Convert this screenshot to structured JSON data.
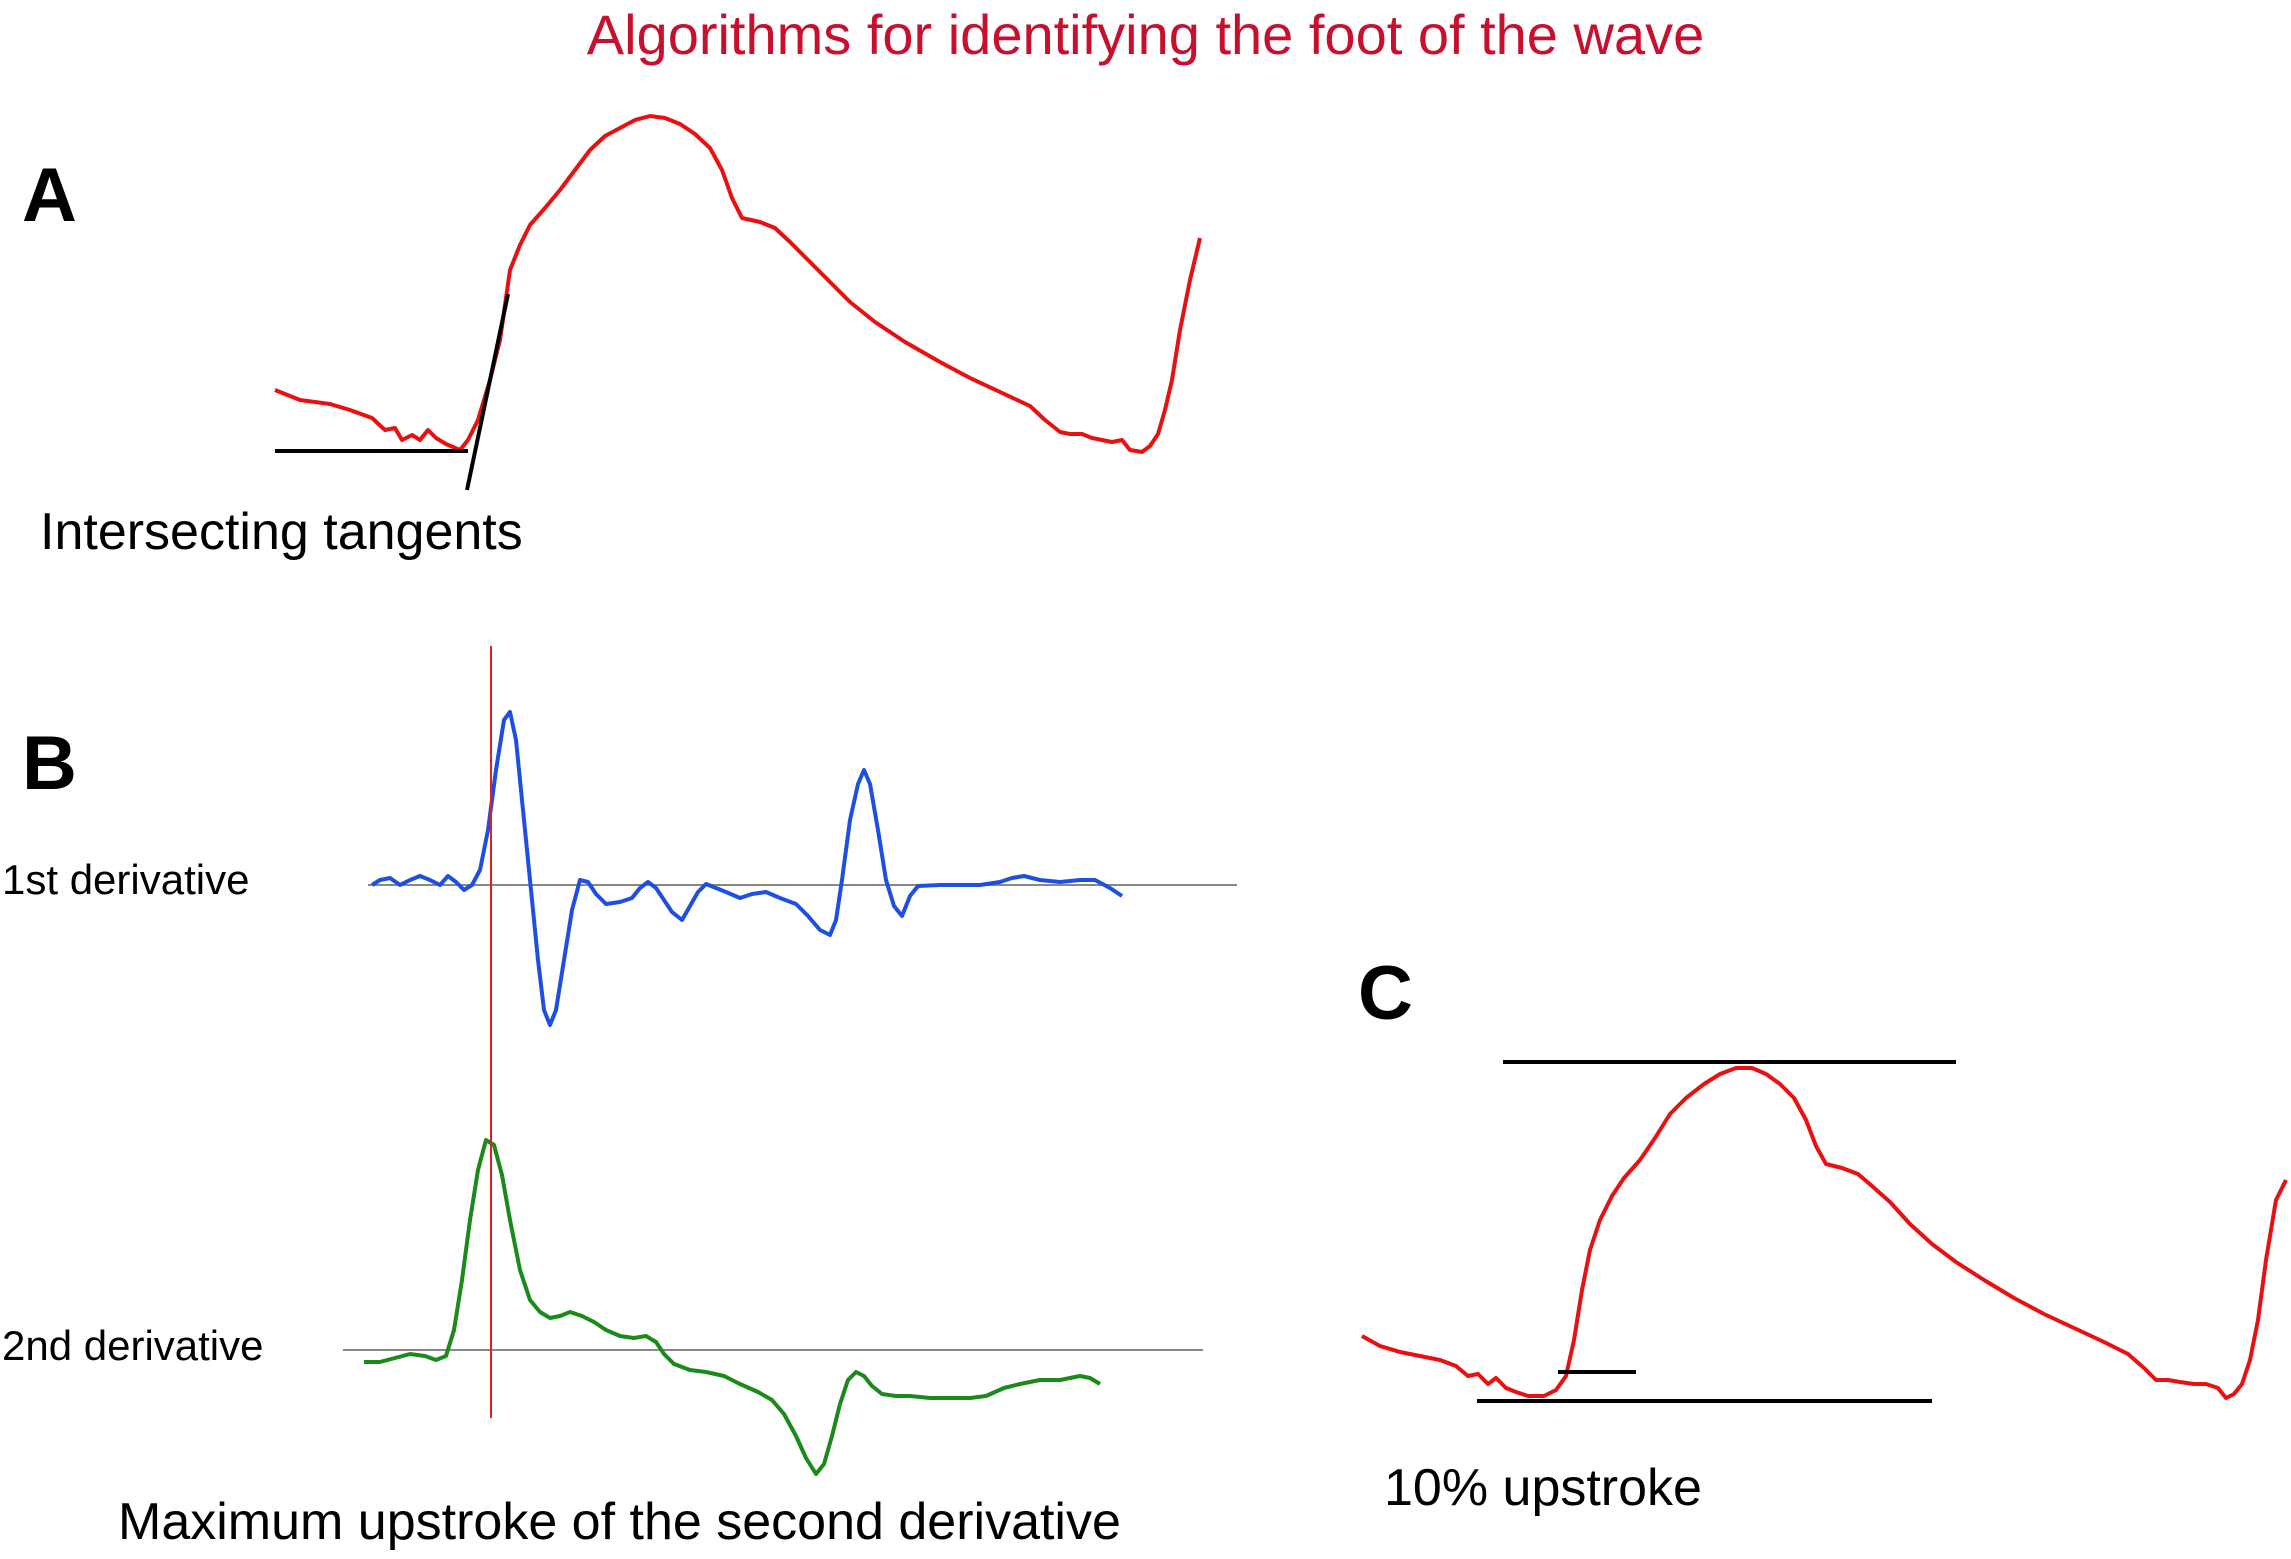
{
  "title": "Algorithms for identifying the foot of the wave",
  "colors": {
    "title": "#c8102e",
    "pressure_wave": "#e81010",
    "first_derivative": "#1f4fe0",
    "second_derivative": "#1a8a1a",
    "marker_line": "#e02020",
    "baseline": "#888888",
    "tangent": "#000000"
  },
  "panels": {
    "a": {
      "letter": "A",
      "caption": "Intersecting  tangents"
    },
    "b": {
      "letter": "B",
      "first_label": "1st derivative",
      "second_label": "2nd derivative",
      "caption": "Maximum upstroke of the second derivative"
    },
    "c": {
      "letter": "C",
      "caption": "10% upstroke"
    }
  }
}
